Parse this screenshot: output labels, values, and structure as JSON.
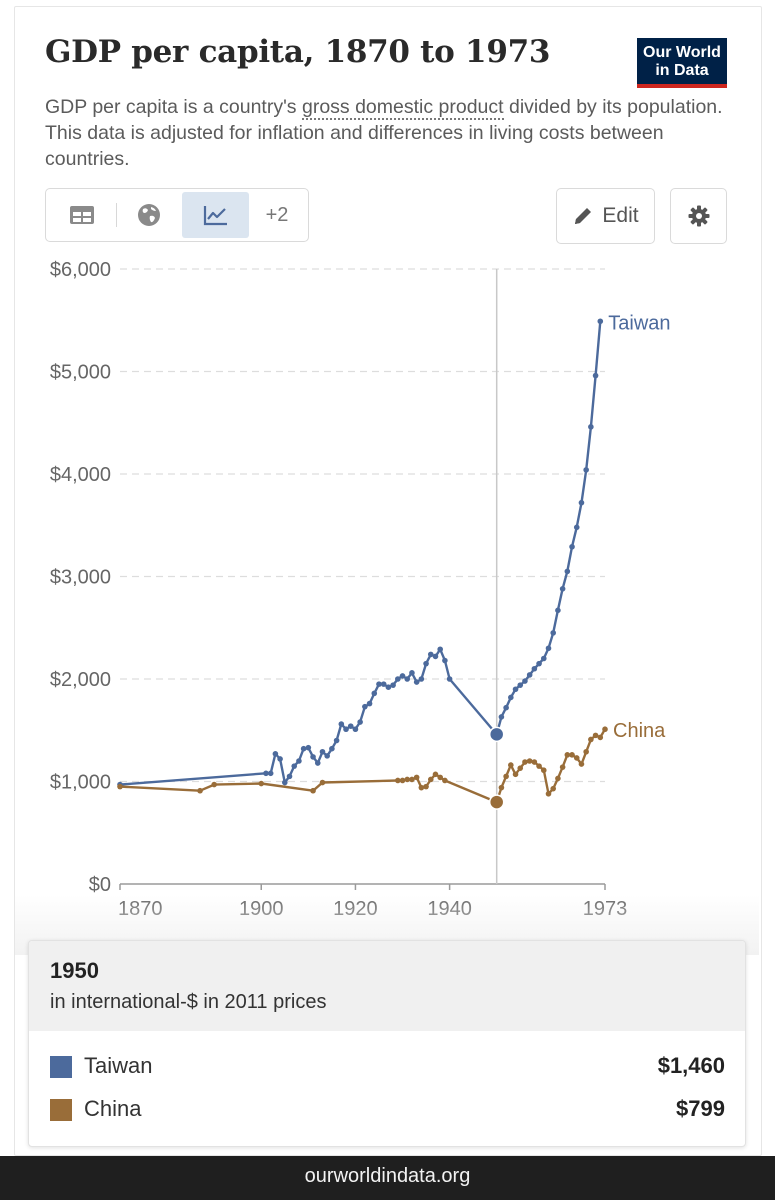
{
  "header": {
    "title": "GDP per capita, 1870 to 1973",
    "subtitle_before": "GDP per capita is a country's ",
    "subtitle_link": "gross domestic product",
    "subtitle_after": " divided by its population. This data is adjusted for inflation and differences in living costs between countries.",
    "logo_line1": "Our World",
    "logo_line2": "in Data"
  },
  "toolbar": {
    "tabs": [
      {
        "icon": "table-icon",
        "active": false
      },
      {
        "icon": "globe-icon",
        "active": false
      },
      {
        "icon": "line-chart-icon",
        "active": true
      }
    ],
    "more_label": "+2",
    "edit_label": "Edit",
    "settings_icon": "gear-icon"
  },
  "colors": {
    "taiwan": "#4c6a9c",
    "china": "#996d39",
    "grid": "#dddddd",
    "axis_text": "#666666"
  },
  "chart_data": {
    "type": "line",
    "title": "GDP per capita, 1870 to 1973",
    "ylabel": "",
    "xlabel": "",
    "ylim": [
      0,
      6000
    ],
    "xlim": [
      1870,
      1973
    ],
    "yticks": [
      0,
      1000,
      2000,
      3000,
      4000,
      5000,
      6000
    ],
    "ytick_labels": [
      "$0",
      "$1,000",
      "$2,000",
      "$3,000",
      "$4,000",
      "$5,000",
      "$6,000"
    ],
    "xticks": [
      1870,
      1900,
      1920,
      1940,
      1973
    ],
    "xtick_labels": [
      "1870",
      "1900",
      "1920",
      "1940",
      "1973"
    ],
    "grid": "horizontal dashed",
    "hover_year": 1950,
    "series": [
      {
        "name": "Taiwan",
        "color": "#4c6a9c",
        "points": [
          [
            1870,
            970
          ],
          [
            1901,
            1080
          ],
          [
            1902,
            1080
          ],
          [
            1903,
            1270
          ],
          [
            1904,
            1220
          ],
          [
            1905,
            990
          ],
          [
            1906,
            1050
          ],
          [
            1907,
            1150
          ],
          [
            1908,
            1200
          ],
          [
            1909,
            1320
          ],
          [
            1910,
            1330
          ],
          [
            1911,
            1240
          ],
          [
            1912,
            1180
          ],
          [
            1913,
            1290
          ],
          [
            1914,
            1250
          ],
          [
            1915,
            1320
          ],
          [
            1916,
            1400
          ],
          [
            1917,
            1560
          ],
          [
            1918,
            1510
          ],
          [
            1919,
            1540
          ],
          [
            1920,
            1510
          ],
          [
            1921,
            1580
          ],
          [
            1922,
            1730
          ],
          [
            1923,
            1760
          ],
          [
            1924,
            1860
          ],
          [
            1925,
            1950
          ],
          [
            1926,
            1950
          ],
          [
            1927,
            1920
          ],
          [
            1928,
            1940
          ],
          [
            1929,
            2000
          ],
          [
            1930,
            2030
          ],
          [
            1931,
            2000
          ],
          [
            1932,
            2060
          ],
          [
            1933,
            1970
          ],
          [
            1934,
            2000
          ],
          [
            1935,
            2150
          ],
          [
            1936,
            2240
          ],
          [
            1937,
            2220
          ],
          [
            1938,
            2290
          ],
          [
            1939,
            2180
          ],
          [
            1940,
            2000
          ],
          [
            1950,
            1460
          ],
          [
            1951,
            1630
          ],
          [
            1952,
            1720
          ],
          [
            1953,
            1820
          ],
          [
            1954,
            1900
          ],
          [
            1955,
            1940
          ],
          [
            1956,
            1980
          ],
          [
            1957,
            2040
          ],
          [
            1958,
            2100
          ],
          [
            1959,
            2150
          ],
          [
            1960,
            2200
          ],
          [
            1961,
            2300
          ],
          [
            1962,
            2450
          ],
          [
            1963,
            2670
          ],
          [
            1964,
            2880
          ],
          [
            1965,
            3050
          ],
          [
            1966,
            3290
          ],
          [
            1967,
            3480
          ],
          [
            1968,
            3720
          ],
          [
            1969,
            4040
          ],
          [
            1970,
            4460
          ],
          [
            1971,
            4960
          ],
          [
            1972,
            5490
          ]
        ]
      },
      {
        "name": "China",
        "color": "#996d39",
        "points": [
          [
            1870,
            950
          ],
          [
            1887,
            910
          ],
          [
            1890,
            970
          ],
          [
            1900,
            980
          ],
          [
            1911,
            910
          ],
          [
            1913,
            990
          ],
          [
            1929,
            1010
          ],
          [
            1930,
            1010
          ],
          [
            1931,
            1020
          ],
          [
            1932,
            1020
          ],
          [
            1933,
            1040
          ],
          [
            1934,
            940
          ],
          [
            1935,
            950
          ],
          [
            1936,
            1020
          ],
          [
            1937,
            1070
          ],
          [
            1938,
            1040
          ],
          [
            1939,
            1010
          ],
          [
            1950,
            799
          ],
          [
            1951,
            940
          ],
          [
            1952,
            1050
          ],
          [
            1953,
            1160
          ],
          [
            1954,
            1070
          ],
          [
            1955,
            1130
          ],
          [
            1956,
            1190
          ],
          [
            1957,
            1200
          ],
          [
            1958,
            1190
          ],
          [
            1959,
            1150
          ],
          [
            1960,
            1110
          ],
          [
            1961,
            880
          ],
          [
            1962,
            930
          ],
          [
            1963,
            1030
          ],
          [
            1964,
            1140
          ],
          [
            1965,
            1260
          ],
          [
            1966,
            1260
          ],
          [
            1967,
            1230
          ],
          [
            1968,
            1170
          ],
          [
            1969,
            1290
          ],
          [
            1970,
            1410
          ],
          [
            1971,
            1450
          ],
          [
            1972,
            1430
          ],
          [
            1973,
            1510
          ]
        ]
      }
    ]
  },
  "tooltip": {
    "year": "1950",
    "unit": "in international-$ in 2011 prices",
    "rows": [
      {
        "name": "Taiwan",
        "value": "$1,460",
        "color": "#4c6a9c"
      },
      {
        "name": "China",
        "value": "$799",
        "color": "#996d39"
      }
    ]
  },
  "footer": {
    "url": "ourworldindata.org"
  }
}
